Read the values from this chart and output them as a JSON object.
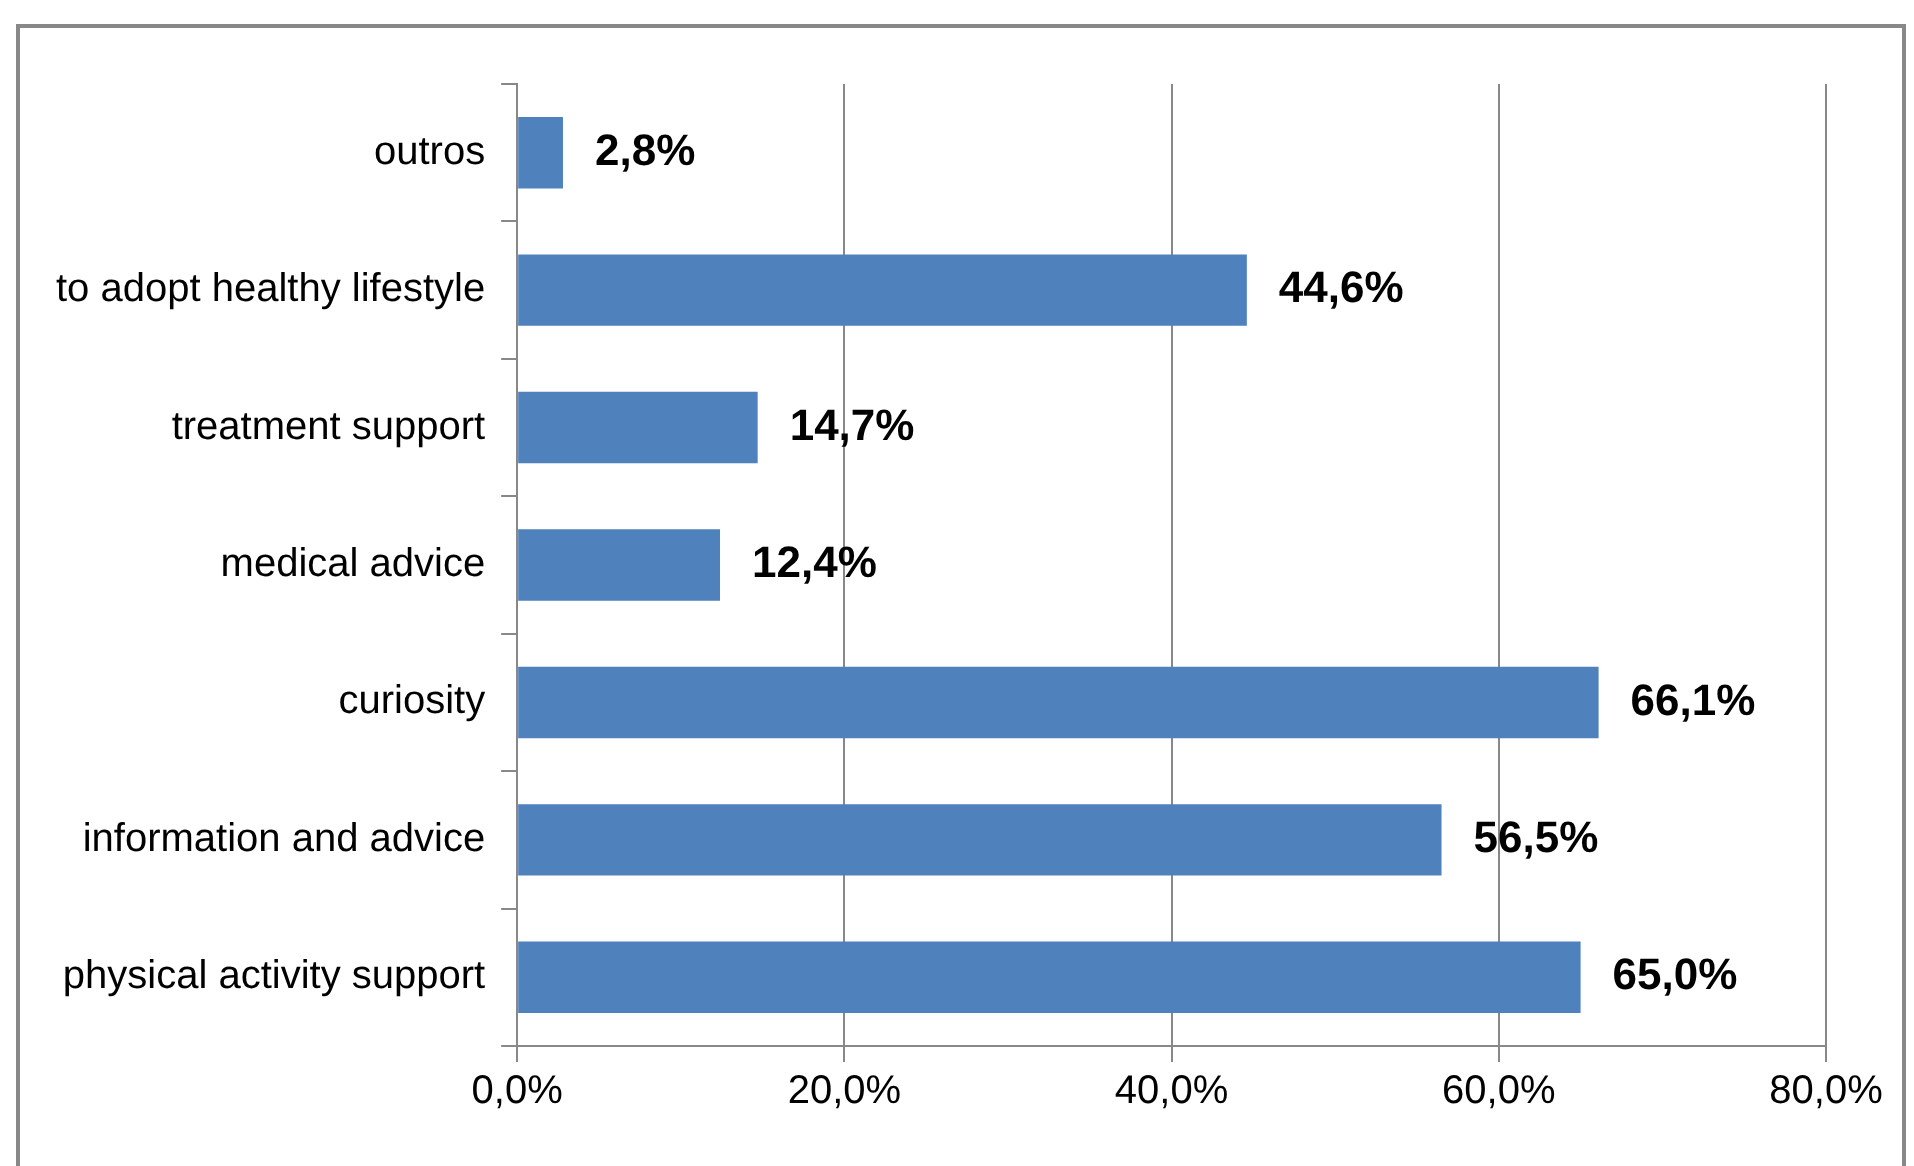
{
  "chart_data": {
    "type": "bar",
    "orientation": "horizontal",
    "categories": [
      "outros",
      "to adopt healthy lifestyle",
      "treatment support",
      "medical advice",
      "curiosity",
      "information and advice",
      "physical activity support"
    ],
    "values": [
      2.8,
      44.6,
      14.7,
      12.4,
      66.1,
      56.5,
      65.0
    ],
    "value_labels": [
      "2,8%",
      "44,6%",
      "14,7%",
      "12,4%",
      "66,1%",
      "56,5%",
      "65,0%"
    ],
    "color": "#4f81bd",
    "xlim": [
      0,
      80
    ],
    "xticks": [
      {
        "value": 0,
        "label": "0,0%"
      },
      {
        "value": 20,
        "label": "20,0%"
      },
      {
        "value": 40,
        "label": "40,0%"
      },
      {
        "value": 60,
        "label": "60,0%"
      },
      {
        "value": 80,
        "label": "80,0%"
      }
    ],
    "grid": "x",
    "legend": false
  }
}
